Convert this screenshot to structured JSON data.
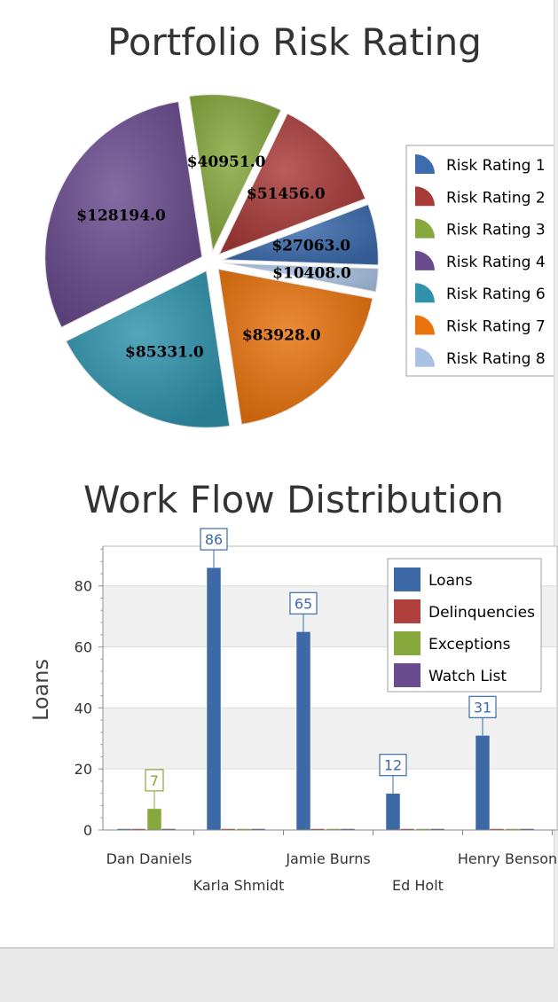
{
  "chart_data": [
    {
      "type": "pie",
      "title": "Portfolio Risk Rating",
      "slices": [
        {
          "name": "Risk Rating 1",
          "value": 27063.0,
          "label": "$27063.0",
          "color": "#3c6cae"
        },
        {
          "name": "Risk Rating 2",
          "value": 51456.0,
          "label": "$51456.0",
          "color": "#a83a38"
        },
        {
          "name": "Risk Rating 3",
          "value": 40951.0,
          "label": "$40951.0",
          "color": "#86a83c"
        },
        {
          "name": "Risk Rating 4",
          "value": 128194.0,
          "label": "$128194.0",
          "color": "#6a4b8e"
        },
        {
          "name": "Risk Rating 6",
          "value": 85331.0,
          "label": "$85331.0",
          "color": "#2f93ac"
        },
        {
          "name": "Risk Rating 7",
          "value": 83928.0,
          "label": "$83928.0",
          "color": "#e8720c"
        },
        {
          "name": "Risk Rating 8",
          "value": 10408.0,
          "label": "$10408.0",
          "color": "#a9c2e2"
        }
      ],
      "legend_position": "right"
    },
    {
      "type": "bar",
      "title": "Work Flow Distribution",
      "ylabel": "Loans",
      "xlabel": "",
      "ylim": [
        0,
        93
      ],
      "yticks": [
        0,
        20,
        40,
        60,
        80
      ],
      "categories": [
        "Dan Daniels",
        "Karla Shmidt",
        "Jamie Burns",
        "Ed Holt",
        "Henry Benson"
      ],
      "series": [
        {
          "name": "Loans",
          "color": "#3d6aa6",
          "values": [
            0,
            86,
            65,
            12,
            31
          ]
        },
        {
          "name": "Delinquencies",
          "color": "#b0403c",
          "values": [
            0,
            0,
            0,
            0,
            0
          ]
        },
        {
          "name": "Exceptions",
          "color": "#86a83c",
          "values": [
            7,
            0,
            0,
            0,
            0
          ]
        },
        {
          "name": "Watch List",
          "color": "#6a4b8e",
          "values": [
            0,
            0,
            0,
            0,
            0
          ]
        }
      ],
      "data_labels": [
        "7",
        "86",
        "65",
        "12",
        "31"
      ],
      "grid": true,
      "legend_position": "top-right"
    }
  ]
}
